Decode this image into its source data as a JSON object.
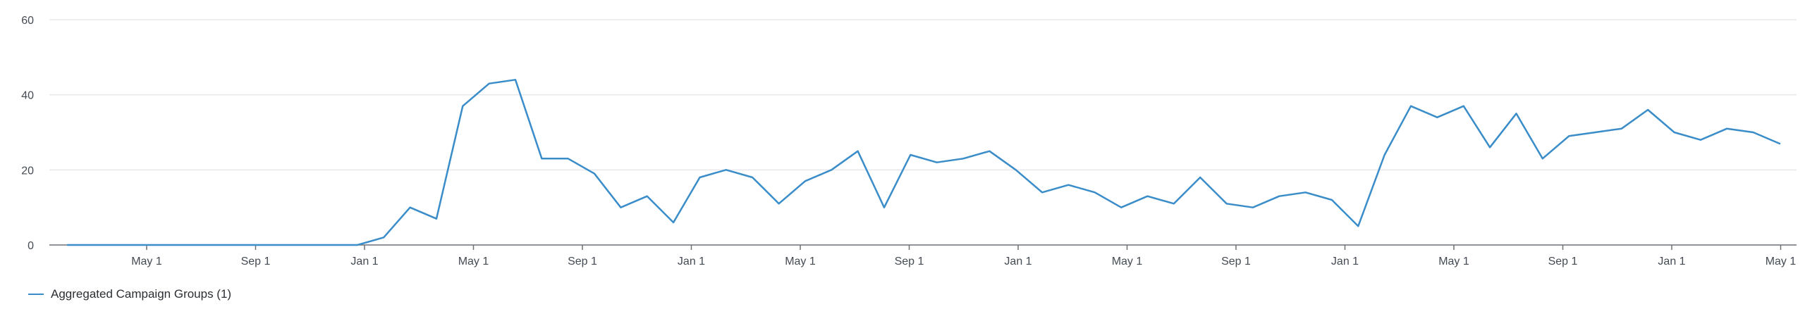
{
  "chart_data": {
    "type": "line",
    "title": "",
    "xlabel": "",
    "ylabel": "",
    "ylim": [
      0,
      60
    ],
    "y_ticks": [
      "0",
      "20",
      "40",
      "60"
    ],
    "grid": true,
    "legend_position": "bottom-left",
    "colors": {
      "series": "#3a8dc9",
      "grid": "#e6e8eb",
      "axis": "#6b7178"
    },
    "x_ticks": [
      "May 1",
      "Sep 1",
      "Jan 1",
      "May 1",
      "Sep 1",
      "Jan 1",
      "May 1",
      "Sep 1",
      "Jan 1",
      "May 1",
      "Sep 1",
      "Jan 1",
      "May 1",
      "Sep 1",
      "Jan 1",
      "May 1"
    ],
    "series": [
      {
        "name": "Aggregated Campaign Groups (1)",
        "values": [
          0,
          0,
          0,
          0,
          0,
          0,
          0,
          0,
          0,
          0,
          0,
          0,
          2,
          10,
          7,
          37,
          43,
          44,
          23,
          23,
          19,
          10,
          13,
          6,
          18,
          20,
          18,
          11,
          17,
          20,
          25,
          10,
          24,
          22,
          23,
          25,
          20,
          14,
          16,
          14,
          10,
          13,
          11,
          18,
          11,
          10,
          13,
          14,
          12,
          5,
          24,
          37,
          34,
          37,
          26,
          35,
          23,
          29,
          30,
          31,
          36,
          30,
          28,
          31,
          30,
          27
        ]
      }
    ]
  },
  "legend": {
    "items": [
      {
        "label": "Aggregated Campaign Groups (1)",
        "color": "#3a8dc9"
      }
    ]
  }
}
